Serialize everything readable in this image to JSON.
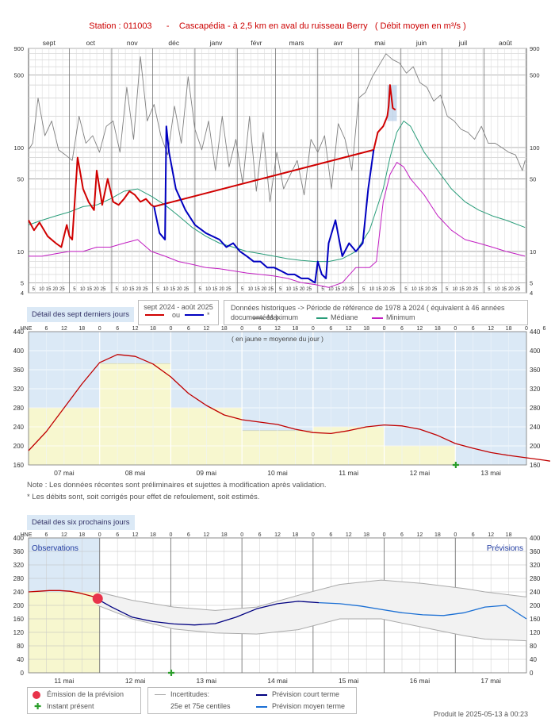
{
  "title": {
    "station": "Station : 011003",
    "dash": "-",
    "name": "Cascapédia - à 2,5 km en aval du ruisseau Berry",
    "unit": "( Débit moyen en m³/s )"
  },
  "produced": "Produit le 2025-05-13 à 00:23",
  "chart_data": [
    {
      "type": "line",
      "id": "annual",
      "months": [
        "sept",
        "oct",
        "nov",
        "déc",
        "janv",
        "févr",
        "mars",
        "avr",
        "mai",
        "juin",
        "juil",
        "août"
      ],
      "month_days": [
        30,
        31,
        30,
        31,
        31,
        28,
        31,
        30,
        31,
        30,
        31,
        31
      ],
      "day_ticks": [
        "5",
        "10",
        "15",
        "20",
        "25"
      ],
      "y_scale": "log",
      "ylim": [
        4,
        900
      ],
      "yticks": [
        4,
        5,
        10,
        50,
        100,
        500,
        900
      ],
      "x_unit": "day of hydrological year from 1 Sept",
      "series": [
        {
          "name": "Maximum",
          "color": "#808080",
          "x": [
            0,
            3,
            7,
            12,
            17,
            22,
            27,
            32,
            37,
            42,
            47,
            52,
            57,
            62,
            67,
            72,
            77,
            82,
            87,
            92,
            97,
            102,
            107,
            112,
            117,
            122,
            127,
            132,
            137,
            142,
            147,
            152,
            157,
            162,
            167,
            172,
            177,
            182,
            187,
            192,
            197,
            202,
            207,
            212,
            217,
            222,
            227,
            232,
            237,
            242,
            247,
            252,
            257,
            262,
            267,
            272,
            277,
            282,
            287,
            292,
            297,
            302,
            307,
            312,
            317,
            322,
            327,
            332,
            337,
            342,
            347,
            352,
            357,
            362,
            364
          ],
          "y": [
            95,
            110,
            300,
            130,
            180,
            95,
            85,
            75,
            200,
            110,
            130,
            90,
            160,
            180,
            90,
            380,
            120,
            750,
            180,
            260,
            130,
            85,
            250,
            110,
            480,
            150,
            95,
            180,
            60,
            200,
            65,
            120,
            45,
            200,
            38,
            140,
            30,
            90,
            40,
            55,
            75,
            35,
            120,
            90,
            130,
            40,
            170,
            120,
            60,
            300,
            340,
            480,
            620,
            800,
            700,
            650,
            520,
            600,
            420,
            380,
            280,
            320,
            200,
            180,
            150,
            140,
            120,
            160,
            110,
            110,
            100,
            90,
            85,
            60,
            75
          ]
        },
        {
          "name": "Médiane",
          "color": "#2a9d7a",
          "x": [
            0,
            10,
            20,
            30,
            40,
            50,
            60,
            70,
            80,
            90,
            100,
            110,
            120,
            130,
            140,
            150,
            160,
            170,
            180,
            190,
            200,
            210,
            220,
            230,
            240,
            250,
            260,
            265,
            270,
            275,
            280,
            285,
            290,
            300,
            310,
            320,
            330,
            340,
            350,
            364
          ],
          "y": [
            18,
            20,
            22,
            24,
            27,
            28,
            32,
            38,
            40,
            34,
            28,
            22,
            17,
            14,
            12,
            11,
            10,
            9.5,
            9,
            8.5,
            8.2,
            8,
            8,
            8.5,
            10,
            16,
            40,
            80,
            140,
            180,
            160,
            120,
            90,
            60,
            40,
            30,
            25,
            22,
            20,
            17
          ]
        },
        {
          "name": "Minimum",
          "color": "#c21ec2",
          "x": [
            0,
            10,
            20,
            30,
            40,
            50,
            60,
            70,
            80,
            90,
            100,
            110,
            120,
            130,
            140,
            150,
            160,
            170,
            180,
            190,
            200,
            210,
            220,
            230,
            240,
            250,
            255,
            260,
            265,
            270,
            275,
            280,
            290,
            300,
            310,
            320,
            330,
            340,
            350,
            364
          ],
          "y": [
            9,
            9,
            9.5,
            10,
            10,
            11,
            11,
            12,
            13,
            10,
            9,
            8,
            7.5,
            7,
            6.8,
            6.5,
            6.2,
            6,
            5.8,
            5.5,
            5,
            4.8,
            4.5,
            5,
            7,
            7,
            8,
            30,
            55,
            72,
            65,
            50,
            35,
            22,
            16,
            13,
            12,
            11,
            10,
            9
          ]
        },
        {
          "name": "sept 2024 - août 2025 (mesuré)",
          "color": "#d00000",
          "x": [
            0,
            4,
            8,
            14,
            20,
            24,
            28,
            30,
            32,
            36,
            40,
            44,
            48,
            50,
            54,
            58,
            62,
            66,
            70,
            74,
            78,
            82,
            86,
            90,
            92,
            253,
            256,
            260,
            263,
            264,
            265,
            267,
            269
          ],
          "y": [
            20,
            16,
            19,
            14,
            12,
            11,
            18,
            14,
            13,
            80,
            40,
            30,
            25,
            60,
            28,
            50,
            30,
            28,
            32,
            38,
            35,
            30,
            32,
            28,
            27,
            95,
            140,
            160,
            200,
            250,
            400,
            240,
            230
          ]
        },
        {
          "name": "sept 2024 - août 2025 (corrigé / estimé)",
          "color": "#0000c0",
          "x": [
            92,
            96,
            100,
            101,
            103,
            108,
            115,
            122,
            130,
            140,
            145,
            150,
            155,
            160,
            165,
            170,
            175,
            180,
            185,
            190,
            195,
            200,
            205,
            210,
            212,
            215,
            218,
            220,
            225,
            230,
            235,
            240,
            245,
            249,
            253
          ],
          "y": [
            27,
            15,
            13,
            160,
            90,
            40,
            25,
            18,
            15,
            13,
            11,
            12,
            10,
            9,
            8,
            8,
            7,
            7,
            6.5,
            6,
            6,
            5.5,
            5.5,
            5,
            8,
            6,
            5.5,
            12,
            20,
            9,
            12,
            10,
            12,
            40,
            95
          ]
        }
      ],
      "legend": {
        "tab": "Détail des sept derniers jours",
        "period": "sept 2024 - août 2025",
        "ou": "ou",
        "star": "*",
        "hist_header": "Données historiques -> Période de référence  de 1978 à 2024   ( équivalent à 46 années documentées )",
        "max": "Maximum",
        "med": "Médiane",
        "min": "Minimum"
      }
    },
    {
      "type": "line",
      "id": "last7",
      "xlabel_hours": [
        "HNE",
        "6",
        "12",
        "18",
        "0",
        "6",
        "12",
        "18",
        "0",
        "6",
        "12",
        "18",
        "0",
        "6",
        "12",
        "18",
        "0",
        "6",
        "12",
        "18",
        "0",
        "6",
        "12",
        "18",
        "0",
        "6",
        "12",
        "18",
        "0",
        "6",
        "12",
        "18"
      ],
      "days": [
        "07 mai",
        "08 mai",
        "09 mai",
        "10 mai",
        "11 mai",
        "12 mai",
        "13 mai"
      ],
      "ylim": [
        160,
        440
      ],
      "yticks": [
        160,
        200,
        240,
        280,
        320,
        360,
        400,
        440
      ],
      "annotation": "( en jaune = moyenne du jour )",
      "daily_means": [
        280,
        373,
        280,
        232,
        240,
        200
      ],
      "x_unit": "hours since 07 mai 00:00",
      "series": [
        {
          "name": "Débit",
          "color": "#c00000",
          "x": [
            0,
            6,
            12,
            18,
            24,
            30,
            36,
            42,
            48,
            54,
            60,
            66,
            72,
            78,
            84,
            90,
            96,
            102,
            108,
            114,
            120,
            126,
            132,
            138,
            144,
            150,
            156,
            162,
            168,
            174,
            176
          ],
          "y": [
            190,
            230,
            280,
            330,
            375,
            392,
            388,
            372,
            345,
            310,
            285,
            265,
            255,
            250,
            245,
            235,
            228,
            226,
            232,
            240,
            244,
            242,
            235,
            222,
            205,
            195,
            186,
            180,
            175,
            170,
            168
          ]
        }
      ]
    },
    {
      "type": "line",
      "id": "forecast",
      "days": [
        "11 mai",
        "12 mai",
        "13 mai",
        "14 mai",
        "15 mai",
        "16 mai",
        "17 mai"
      ],
      "ylim": [
        0,
        400
      ],
      "yticks": [
        0,
        40,
        80,
        120,
        160,
        200,
        240,
        280,
        320,
        360,
        400
      ],
      "x_unit": "hours since 11 mai 00:00",
      "obs_label": "Observations",
      "prev_label": "Prévisions",
      "series": [
        {
          "name": "Observations",
          "color": "#c00000",
          "x": [
            0,
            6,
            12,
            18,
            24,
            30,
            36,
            40
          ],
          "y": [
            240,
            242,
            244,
            244,
            242,
            236,
            228,
            222
          ]
        },
        {
          "name": "Prévision court terme",
          "color": "#000080",
          "x": [
            40,
            48,
            60,
            72,
            84,
            96,
            108,
            120,
            132,
            144,
            156,
            168
          ],
          "y": [
            218,
            195,
            165,
            152,
            145,
            142,
            146,
            165,
            190,
            205,
            212,
            208
          ]
        },
        {
          "name": "Prévision moyen terme",
          "color": "#1a6fd4",
          "x": [
            168,
            180,
            192,
            204,
            216,
            228,
            240,
            252,
            264,
            276,
            288
          ],
          "y": [
            208,
            205,
            198,
            188,
            178,
            172,
            170,
            178,
            195,
            200,
            160
          ]
        },
        {
          "name": "Incertitude haute",
          "color": "#aaaaaa",
          "x": [
            40,
            60,
            84,
            108,
            132,
            156,
            180,
            204,
            228,
            252,
            264,
            288
          ],
          "y": [
            240,
            215,
            195,
            185,
            195,
            230,
            262,
            275,
            265,
            250,
            240,
            225
          ]
        },
        {
          "name": "Incertitude basse",
          "color": "#aaaaaa",
          "x": [
            40,
            60,
            84,
            108,
            132,
            156,
            180,
            204,
            228,
            252,
            264,
            288
          ],
          "y": [
            200,
            160,
            130,
            118,
            115,
            128,
            160,
            160,
            135,
            110,
            100,
            95
          ]
        }
      ],
      "legend": {
        "tab": "Détail des six prochains jours",
        "emission": "Émission de la prévision",
        "instant": "Instant présent",
        "incert": "Incertitudes:",
        "incert2": "25e et 75e centiles",
        "court": "Prévision court terme",
        "moyen": "Prévision moyen terme"
      }
    }
  ],
  "notes": {
    "note1": "Note : Les données récentes sont préliminaires et sujettes à modification après validation.",
    "note2": "* Les débits sont, soit corrigés pour effet de refoulement, soit estimés."
  }
}
